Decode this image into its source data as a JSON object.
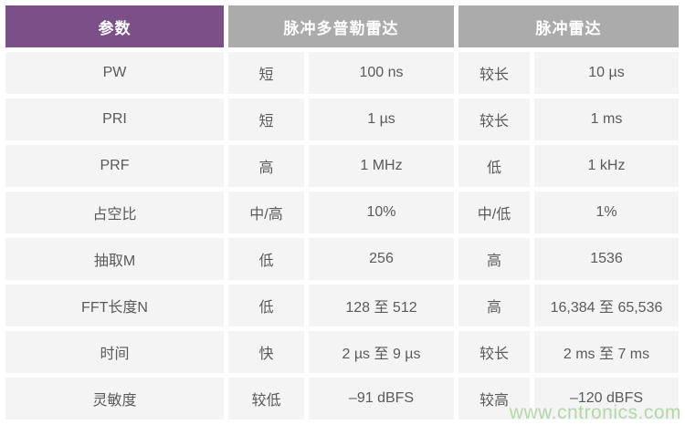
{
  "chart_data": {
    "type": "table",
    "header": [
      "参数",
      "脉冲多普勒雷达",
      "脉冲雷达"
    ],
    "rows": [
      [
        "PW",
        "短",
        "100 ns",
        "较长",
        "10 µs"
      ],
      [
        "PRI",
        "短",
        "1 µs",
        "较长",
        "1 ms"
      ],
      [
        "PRF",
        "高",
        "1 MHz",
        "低",
        "1 kHz"
      ],
      [
        "占空比",
        "中/高",
        "10%",
        "中/低",
        "1%"
      ],
      [
        "抽取M",
        "低",
        "256",
        "高",
        "1536"
      ],
      [
        "FFT长度N",
        "低",
        "128 至 512",
        "高",
        "16,384 至 65,536"
      ],
      [
        "时间",
        "快",
        "2 µs 至 9 µs",
        "较长",
        "2 ms 至 7 ms"
      ],
      [
        "灵敏度",
        "较低",
        "–91 dBFS",
        "较高",
        "–120 dBFS"
      ]
    ],
    "layout_hints": {
      "header_spans": [
        1,
        2,
        2
      ],
      "grid": "white gridlines between uniform light-gray cells"
    }
  },
  "watermark": {
    "text": "www.cntronics.com"
  },
  "colors": {
    "accent_purple": "#7b4f87",
    "header_gray": "#ababab",
    "cell_background": "#f4f4f5",
    "body_text": "#5a5a5a",
    "header_text": "#ffffff",
    "watermark_green": "#a8d399",
    "page_background": "#ffffff"
  }
}
